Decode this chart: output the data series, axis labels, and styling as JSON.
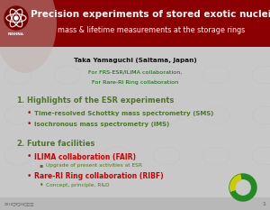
{
  "bg_color": "#c8c8c8",
  "header_bg": "#8b0000",
  "title_line1": "Precision experiments of stored exotic nuclei",
  "title_line2": "mass & lifetime measurements at the storage rings",
  "title_color": "#ffffff",
  "author": "Taka Yamaguchi (Saitama, Japan)",
  "collab1": "For FRS-ESR/ILIMA collaboration,",
  "collab2": "For Rare-RI Ring collaboration",
  "collab_color": "#006400",
  "author_color": "#111111",
  "section1_num": "1.",
  "section1_title": "Highlights of the ESR experiments",
  "section1_bullets": [
    "Time-resolved Schottky mass spectrometry (SMS)",
    "Isochronous mass spectrometry (IMS)"
  ],
  "section2_num": "2.",
  "section2_title": "Future facilities",
  "section2_main_bullets": [
    "ILIMA collaboration (FAIR)",
    "Rare-RI Ring collaboration (RIBF)"
  ],
  "section2_sub1": "Upgrade of present activities at ESR",
  "section2_sub2": "Concept, principle, R&D",
  "section_color": "#4a7a1e",
  "bullet_color": "#cc0000",
  "sub_bullet_color": "#4a7a1e",
  "footer_text": "2010年9月26日日曜日",
  "page_num": "1",
  "footer_color": "#555555",
  "logo_green": "#228b22",
  "logo_yellow": "#cccc00"
}
